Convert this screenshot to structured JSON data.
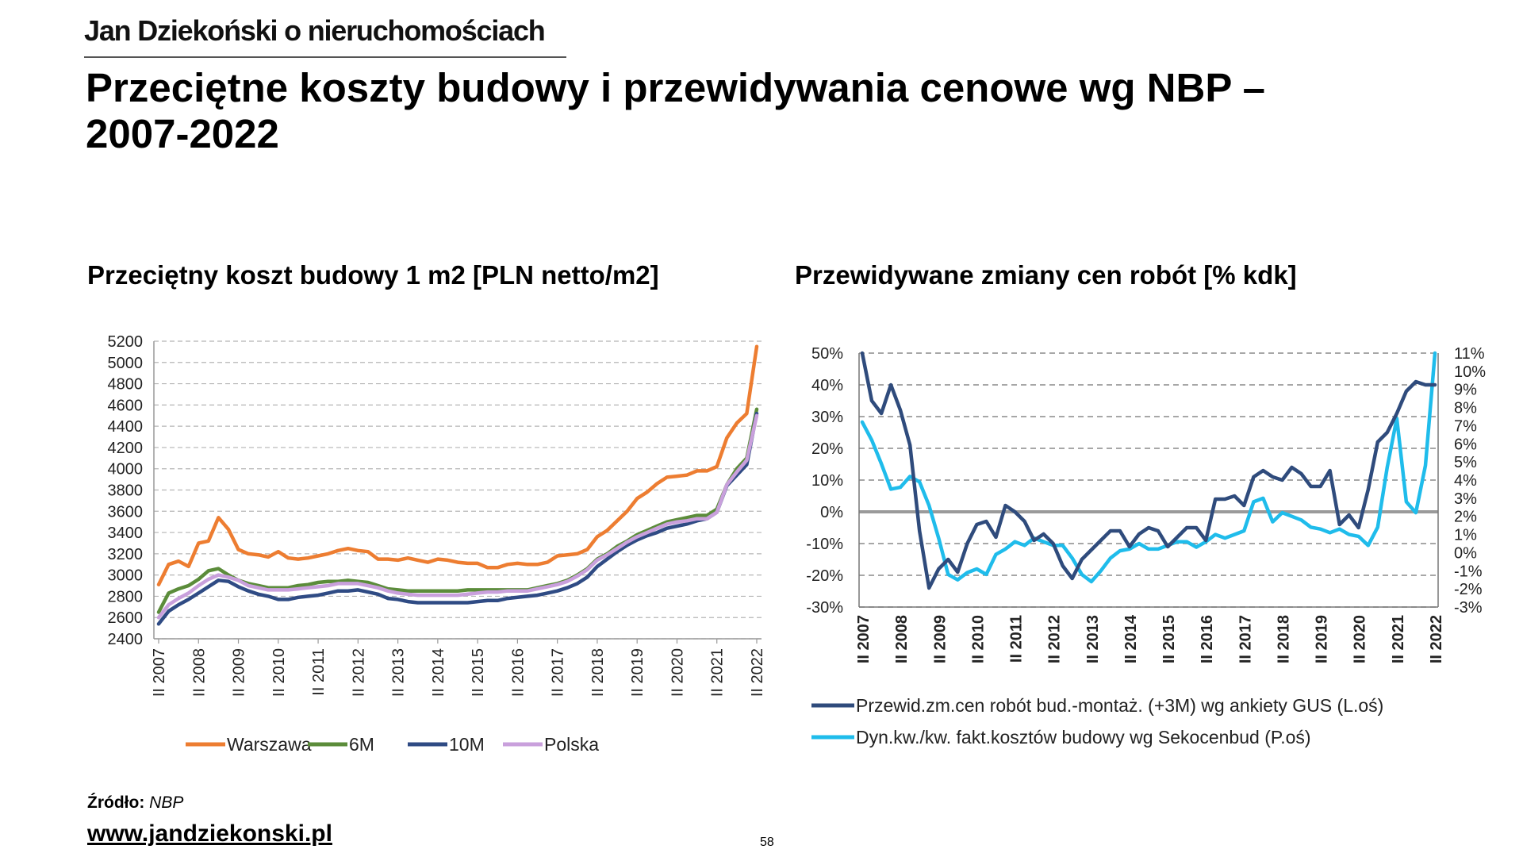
{
  "header": {
    "brand": "Jan Dziekoński o nieruchomościach",
    "title": "Przeciętne koszty budowy i przewidywania cenowe wg NBP – 2007-2022"
  },
  "footer": {
    "source_label": "Źródło:",
    "source_value": "NBP",
    "website": "www.jandziekonski.pl",
    "page_number": "58"
  },
  "colors": {
    "warszawa": "#ED7D31",
    "m6": "#5B8C3A",
    "m10": "#2F4B84",
    "polska": "#C9A0DC",
    "gus": "#2F4B7C",
    "sekocenbud": "#1FBCEB"
  },
  "chart_data": [
    {
      "type": "line",
      "title": "Przeciętny koszt budowy 1 m2 [PLN netto/m2]",
      "ylim": [
        2400,
        5200
      ],
      "yticks": [
        "5200",
        "5000",
        "4800",
        "4600",
        "4400",
        "4200",
        "4000",
        "3800",
        "3600",
        "3400",
        "3200",
        "3000",
        "2800",
        "2600",
        "2400"
      ],
      "x_labels": [
        "II 2007",
        "II 2008",
        "II 2009",
        "II 2010",
        "II 2011",
        "II 2012",
        "II 2013",
        "II 2014",
        "II 2015",
        "II 2016",
        "II 2017",
        "II 2018",
        "II 2019",
        "II 2020",
        "II 2021",
        "II 2022"
      ],
      "x_points": 61,
      "series": [
        {
          "name": "Warszawa",
          "color": "#ED7D31",
          "values": [
            2910,
            3100,
            3130,
            3080,
            3300,
            3320,
            3540,
            3430,
            3240,
            3200,
            3190,
            3170,
            3220,
            3160,
            3150,
            3160,
            3180,
            3200,
            3230,
            3250,
            3230,
            3220,
            3150,
            3150,
            3140,
            3160,
            3140,
            3120,
            3150,
            3140,
            3120,
            3110,
            3110,
            3070,
            3070,
            3100,
            3110,
            3100,
            3100,
            3120,
            3180,
            3190,
            3200,
            3240,
            3360,
            3420,
            3510,
            3600,
            3720,
            3780,
            3860,
            3920,
            3930,
            3940,
            3980,
            3980,
            4020,
            4290,
            4430,
            4520,
            5150
          ]
        },
        {
          "name": "6M",
          "color": "#5B8C3A",
          "values": [
            2650,
            2830,
            2870,
            2900,
            2960,
            3040,
            3060,
            3000,
            2950,
            2920,
            2900,
            2880,
            2880,
            2880,
            2900,
            2910,
            2930,
            2940,
            2940,
            2950,
            2940,
            2930,
            2900,
            2870,
            2860,
            2850,
            2850,
            2850,
            2850,
            2850,
            2850,
            2860,
            2860,
            2860,
            2860,
            2860,
            2860,
            2860,
            2880,
            2900,
            2920,
            2950,
            3000,
            3060,
            3150,
            3200,
            3270,
            3320,
            3380,
            3420,
            3460,
            3500,
            3520,
            3540,
            3560,
            3560,
            3620,
            3850,
            4000,
            4100,
            4560
          ]
        },
        {
          "name": "10M",
          "color": "#2F4B84",
          "values": [
            2540,
            2660,
            2720,
            2770,
            2830,
            2890,
            2950,
            2940,
            2890,
            2850,
            2820,
            2800,
            2770,
            2770,
            2790,
            2800,
            2810,
            2830,
            2850,
            2850,
            2860,
            2840,
            2820,
            2780,
            2770,
            2750,
            2740,
            2740,
            2740,
            2740,
            2740,
            2740,
            2750,
            2760,
            2760,
            2780,
            2790,
            2800,
            2810,
            2830,
            2850,
            2880,
            2920,
            2980,
            3080,
            3150,
            3220,
            3280,
            3330,
            3370,
            3400,
            3440,
            3460,
            3480,
            3510,
            3530,
            3590,
            3840,
            3940,
            4040,
            4520
          ]
        },
        {
          "name": "Polska",
          "color": "#C9A0DC",
          "values": [
            2600,
            2720,
            2780,
            2830,
            2900,
            2960,
            3000,
            2980,
            2950,
            2900,
            2880,
            2860,
            2860,
            2860,
            2870,
            2880,
            2890,
            2900,
            2920,
            2920,
            2920,
            2900,
            2880,
            2850,
            2830,
            2820,
            2810,
            2810,
            2810,
            2810,
            2810,
            2820,
            2830,
            2840,
            2840,
            2850,
            2850,
            2850,
            2870,
            2890,
            2910,
            2940,
            2990,
            3050,
            3140,
            3190,
            3250,
            3310,
            3360,
            3400,
            3440,
            3480,
            3500,
            3510,
            3530,
            3530,
            3590,
            3850,
            3970,
            4080,
            4500
          ]
        }
      ]
    },
    {
      "type": "line",
      "title": "Przewidywane zmiany cen robót [% kdk]",
      "ylim_left": [
        -30,
        50
      ],
      "ylim_right": [
        -3,
        11
      ],
      "yticks_left": [
        "50%",
        "40%",
        "30%",
        "20%",
        "10%",
        "0%",
        "-10%",
        "-20%",
        "-30%"
      ],
      "yticks_right": [
        "11%",
        "10%",
        "9%",
        "8%",
        "7%",
        "6%",
        "5%",
        "4%",
        "3%",
        "2%",
        "1%",
        "0%",
        "-1%",
        "-2%",
        "-3%"
      ],
      "x_labels": [
        "II 2007",
        "II 2008",
        "II 2009",
        "II 2010",
        "II 2011",
        "II 2012",
        "II 2013",
        "II 2014",
        "II 2015",
        "II 2016",
        "II 2017",
        "II 2018",
        "II 2019",
        "II 2020",
        "II 2021",
        "II 2022"
      ],
      "x_points": 61,
      "series": [
        {
          "name": "Przewid.zm.cen robót bud.-montaż. (+3M) wg ankiety GUS (L.oś)",
          "axis": "left",
          "color": "#2F4B7C",
          "values": [
            50,
            35,
            31,
            40,
            32,
            21,
            -6,
            -24,
            -18,
            -15,
            -19,
            -10,
            -4,
            -3,
            -8,
            2,
            0,
            -3,
            -9,
            -7,
            -10,
            -17,
            -21,
            -15,
            -12,
            -9,
            -6,
            -6,
            -11,
            -7,
            -5,
            -6,
            -11,
            -8,
            -5,
            -5,
            -9,
            4,
            4,
            5,
            2,
            11,
            13,
            11,
            10,
            14,
            12,
            8,
            8,
            13,
            -4,
            -1,
            -5,
            7,
            22,
            25,
            31,
            38,
            41,
            40,
            40
          ]
        },
        {
          "name": "Dyn.kw./kw. fakt.kosztów budowy wg Sekocenbud (P.oś)",
          "axis": "right",
          "color": "#1FBCEB",
          "values": [
            7.2,
            6.2,
            4.9,
            3.5,
            3.6,
            4.2,
            3.9,
            2.6,
            0.8,
            -1.2,
            -1.5,
            -1.1,
            -0.9,
            -1.2,
            -0.1,
            0.2,
            0.6,
            0.4,
            0.8,
            0.6,
            0.4,
            0.4,
            -0.3,
            -1.2,
            -1.6,
            -1.0,
            -0.3,
            0.1,
            0.2,
            0.5,
            0.2,
            0.2,
            0.4,
            0.6,
            0.6,
            0.3,
            0.6,
            1.0,
            0.8,
            1.0,
            1.2,
            2.8,
            3.0,
            1.7,
            2.2,
            2.0,
            1.8,
            1.4,
            1.3,
            1.1,
            1.3,
            1.0,
            0.9,
            0.4,
            1.4,
            4.7,
            7.4,
            2.8,
            2.2,
            4.8,
            11.0
          ]
        }
      ]
    }
  ]
}
